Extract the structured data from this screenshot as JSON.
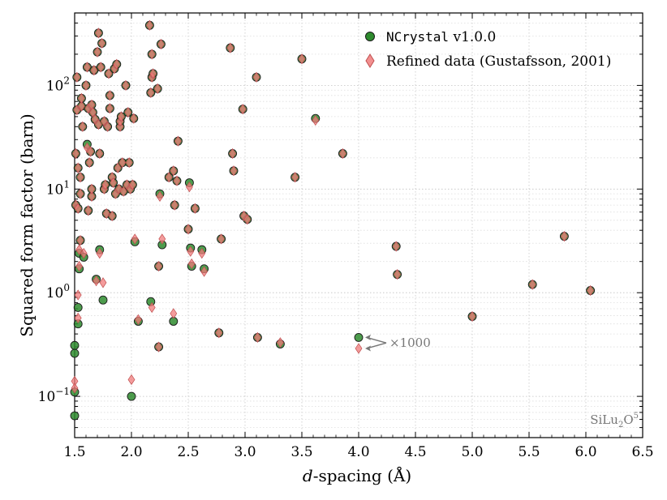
{
  "chart_data": {
    "type": "scatter",
    "xlabel": "d-spacing (Å)",
    "xlabel_italic_part": "d",
    "xlabel_rest": "-spacing (Å)",
    "ylabel": "Squared form factor (barn)",
    "xlim": [
      1.5,
      6.5
    ],
    "ylim": [
      0.04,
      500
    ],
    "yscale": "log",
    "x_ticks": [
      1.5,
      2.0,
      2.5,
      3.0,
      3.5,
      4.0,
      4.5,
      5.0,
      5.5,
      6.0,
      6.5
    ],
    "x_tick_labels": [
      "1.5",
      "2.0",
      "2.5",
      "3.0",
      "3.5",
      "4.0",
      "4.5",
      "5.0",
      "5.5",
      "6.0",
      "6.5"
    ],
    "y_ticks": [
      0.1,
      1,
      10,
      100
    ],
    "y_tick_labels": [
      {
        "base": "10",
        "exp": "−1"
      },
      {
        "base": "10",
        "exp": "0"
      },
      {
        "base": "10",
        "exp": "1"
      },
      {
        "base": "10",
        "exp": "2"
      }
    ],
    "grid": true,
    "legend_position": "top-right",
    "annotation": {
      "text": "×1000",
      "x": 4.0,
      "y_upper": 0.37,
      "y_lower": 0.29
    },
    "watermark": {
      "text_main": "SiLu",
      "sub": "2",
      "text_o": "O",
      "sup": "5"
    },
    "series": [
      {
        "name": "NCrystal v1.0.0",
        "name_mono": "NCrystal",
        "name_rest": " v1.0.0",
        "marker": "circle",
        "color": "#2e8b2e",
        "edge": "#1a1a1a",
        "points": [
          [
            1.5,
            0.31
          ],
          [
            1.5,
            0.26
          ],
          [
            1.5,
            0.11
          ],
          [
            1.5,
            0.065
          ],
          [
            1.51,
            7
          ],
          [
            1.51,
            22
          ],
          [
            1.52,
            58
          ],
          [
            1.52,
            120
          ],
          [
            1.53,
            6.5
          ],
          [
            1.53,
            16
          ],
          [
            1.53,
            0.72
          ],
          [
            1.53,
            0.5
          ],
          [
            1.54,
            1.7
          ],
          [
            1.54,
            2.4
          ],
          [
            1.55,
            3.2
          ],
          [
            1.55,
            9
          ],
          [
            1.55,
            13
          ],
          [
            1.56,
            63
          ],
          [
            1.56,
            75
          ],
          [
            1.57,
            40
          ],
          [
            1.58,
            2.2
          ],
          [
            1.6,
            100
          ],
          [
            1.61,
            150
          ],
          [
            1.61,
            27
          ],
          [
            1.62,
            6.2
          ],
          [
            1.62,
            60
          ],
          [
            1.63,
            18
          ],
          [
            1.64,
            23
          ],
          [
            1.65,
            8.5
          ],
          [
            1.65,
            10
          ],
          [
            1.65,
            65
          ],
          [
            1.66,
            55
          ],
          [
            1.67,
            140
          ],
          [
            1.68,
            47
          ],
          [
            1.69,
            1.35
          ],
          [
            1.7,
            210
          ],
          [
            1.71,
            320
          ],
          [
            1.71,
            42
          ],
          [
            1.72,
            22
          ],
          [
            1.72,
            2.6
          ],
          [
            1.73,
            150
          ],
          [
            1.74,
            255
          ],
          [
            1.75,
            0.85
          ],
          [
            1.76,
            45
          ],
          [
            1.76,
            10
          ],
          [
            1.77,
            11
          ],
          [
            1.78,
            5.8
          ],
          [
            1.79,
            40
          ],
          [
            1.8,
            130
          ],
          [
            1.81,
            80
          ],
          [
            1.81,
            60
          ],
          [
            1.83,
            13
          ],
          [
            1.83,
            5.5
          ],
          [
            1.84,
            11.5
          ],
          [
            1.85,
            145
          ],
          [
            1.86,
            9
          ],
          [
            1.87,
            160
          ],
          [
            1.88,
            16
          ],
          [
            1.89,
            10
          ],
          [
            1.9,
            40
          ],
          [
            1.9,
            45
          ],
          [
            1.91,
            50
          ],
          [
            1.92,
            18
          ],
          [
            1.93,
            9.5
          ],
          [
            1.95,
            100
          ],
          [
            1.96,
            11
          ],
          [
            1.97,
            55
          ],
          [
            1.98,
            18
          ],
          [
            1.99,
            10
          ],
          [
            2.0,
            0.1
          ],
          [
            2.01,
            11
          ],
          [
            2.02,
            48
          ],
          [
            2.03,
            3.1
          ],
          [
            2.06,
            0.53
          ],
          [
            2.16,
            380
          ],
          [
            2.17,
            85
          ],
          [
            2.17,
            0.82
          ],
          [
            2.18,
            200
          ],
          [
            2.18,
            120
          ],
          [
            2.19,
            130
          ],
          [
            2.23,
            93
          ],
          [
            2.24,
            1.8
          ],
          [
            2.24,
            0.3
          ],
          [
            2.25,
            9
          ],
          [
            2.26,
            250
          ],
          [
            2.27,
            2.9
          ],
          [
            2.33,
            13
          ],
          [
            2.37,
            15
          ],
          [
            2.37,
            0.53
          ],
          [
            2.38,
            7
          ],
          [
            2.4,
            12
          ],
          [
            2.41,
            29
          ],
          [
            2.5,
            4.1
          ],
          [
            2.51,
            11.5
          ],
          [
            2.52,
            2.7
          ],
          [
            2.53,
            1.8
          ],
          [
            2.56,
            6.5
          ],
          [
            2.62,
            2.6
          ],
          [
            2.64,
            1.7
          ],
          [
            2.77,
            0.41
          ],
          [
            2.79,
            3.3
          ],
          [
            2.87,
            230
          ],
          [
            2.89,
            22
          ],
          [
            2.9,
            15
          ],
          [
            2.98,
            59
          ],
          [
            2.99,
            5.5
          ],
          [
            3.02,
            5.1
          ],
          [
            3.1,
            120
          ],
          [
            3.11,
            0.37
          ],
          [
            3.31,
            0.32
          ],
          [
            3.44,
            13
          ],
          [
            3.5,
            180
          ],
          [
            3.62,
            48
          ],
          [
            3.86,
            22
          ],
          [
            4.0,
            0.37
          ],
          [
            4.33,
            2.8
          ],
          [
            4.34,
            1.5
          ],
          [
            5.0,
            0.59
          ],
          [
            5.53,
            1.2
          ],
          [
            5.81,
            3.5
          ],
          [
            6.04,
            1.05
          ]
        ]
      },
      {
        "name": "Refined data (Gustafsson, 2001)",
        "marker": "diamond",
        "color": "#f07b7b",
        "edge": "#c05050",
        "points": [
          [
            1.5,
            0.14
          ],
          [
            1.5,
            0.12
          ],
          [
            1.51,
            7
          ],
          [
            1.51,
            22
          ],
          [
            1.52,
            58
          ],
          [
            1.52,
            120
          ],
          [
            1.53,
            6.5
          ],
          [
            1.53,
            16
          ],
          [
            1.53,
            0.95
          ],
          [
            1.53,
            0.57
          ],
          [
            1.54,
            1.8
          ],
          [
            1.54,
            2.6
          ],
          [
            1.55,
            3.2
          ],
          [
            1.55,
            9
          ],
          [
            1.55,
            13
          ],
          [
            1.56,
            63
          ],
          [
            1.56,
            75
          ],
          [
            1.57,
            40
          ],
          [
            1.58,
            2.4
          ],
          [
            1.6,
            100
          ],
          [
            1.61,
            150
          ],
          [
            1.61,
            25
          ],
          [
            1.62,
            6.2
          ],
          [
            1.62,
            60
          ],
          [
            1.63,
            18
          ],
          [
            1.64,
            23
          ],
          [
            1.65,
            8.5
          ],
          [
            1.65,
            10
          ],
          [
            1.65,
            65
          ],
          [
            1.66,
            55
          ],
          [
            1.67,
            140
          ],
          [
            1.68,
            47
          ],
          [
            1.69,
            1.3
          ],
          [
            1.7,
            210
          ],
          [
            1.71,
            320
          ],
          [
            1.71,
            42
          ],
          [
            1.72,
            22
          ],
          [
            1.72,
            2.4
          ],
          [
            1.73,
            150
          ],
          [
            1.74,
            255
          ],
          [
            1.75,
            1.25
          ],
          [
            1.76,
            45
          ],
          [
            1.76,
            10
          ],
          [
            1.77,
            11
          ],
          [
            1.78,
            5.8
          ],
          [
            1.79,
            40
          ],
          [
            1.8,
            130
          ],
          [
            1.81,
            80
          ],
          [
            1.81,
            60
          ],
          [
            1.83,
            13
          ],
          [
            1.83,
            5.5
          ],
          [
            1.84,
            11.5
          ],
          [
            1.85,
            145
          ],
          [
            1.86,
            9
          ],
          [
            1.87,
            160
          ],
          [
            1.88,
            16
          ],
          [
            1.89,
            10
          ],
          [
            1.9,
            40
          ],
          [
            1.9,
            45
          ],
          [
            1.91,
            50
          ],
          [
            1.92,
            18
          ],
          [
            1.93,
            9.5
          ],
          [
            1.95,
            100
          ],
          [
            1.96,
            11
          ],
          [
            1.97,
            55
          ],
          [
            1.98,
            18
          ],
          [
            1.99,
            10
          ],
          [
            2.0,
            0.145
          ],
          [
            2.01,
            11
          ],
          [
            2.02,
            48
          ],
          [
            2.03,
            3.3
          ],
          [
            2.06,
            0.55
          ],
          [
            2.16,
            380
          ],
          [
            2.17,
            85
          ],
          [
            2.18,
            0.72
          ],
          [
            2.18,
            200
          ],
          [
            2.18,
            120
          ],
          [
            2.19,
            130
          ],
          [
            2.23,
            93
          ],
          [
            2.24,
            1.8
          ],
          [
            2.24,
            0.3
          ],
          [
            2.25,
            8.5
          ],
          [
            2.26,
            250
          ],
          [
            2.27,
            3.3
          ],
          [
            2.33,
            13
          ],
          [
            2.37,
            15
          ],
          [
            2.37,
            0.63
          ],
          [
            2.38,
            7
          ],
          [
            2.4,
            12
          ],
          [
            2.41,
            29
          ],
          [
            2.5,
            4.1
          ],
          [
            2.51,
            10.5
          ],
          [
            2.52,
            2.5
          ],
          [
            2.53,
            1.9
          ],
          [
            2.56,
            6.5
          ],
          [
            2.62,
            2.4
          ],
          [
            2.64,
            1.6
          ],
          [
            2.77,
            0.41
          ],
          [
            2.79,
            3.3
          ],
          [
            2.87,
            230
          ],
          [
            2.89,
            22
          ],
          [
            2.9,
            15
          ],
          [
            2.98,
            59
          ],
          [
            2.99,
            5.5
          ],
          [
            3.02,
            5.1
          ],
          [
            3.1,
            120
          ],
          [
            3.11,
            0.37
          ],
          [
            3.31,
            0.33
          ],
          [
            3.44,
            13
          ],
          [
            3.5,
            180
          ],
          [
            3.62,
            46
          ],
          [
            3.86,
            22
          ],
          [
            4.0,
            0.29
          ],
          [
            4.33,
            2.8
          ],
          [
            4.34,
            1.5
          ],
          [
            5.0,
            0.59
          ],
          [
            5.53,
            1.2
          ],
          [
            5.81,
            3.5
          ],
          [
            6.04,
            1.05
          ]
        ]
      }
    ]
  }
}
